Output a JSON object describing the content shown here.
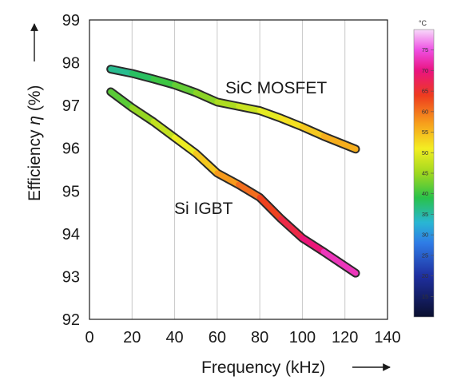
{
  "chart_data": {
    "type": "line",
    "title": "",
    "xlabel": "Frequency (kHz)",
    "ylabel_prefix": "Efficiency ",
    "ylabel_symbol": "η",
    "ylabel_suffix": " (%)",
    "xlim": [
      0,
      140
    ],
    "ylim": [
      92,
      99
    ],
    "x_ticks": [
      0,
      20,
      40,
      60,
      80,
      100,
      120,
      140
    ],
    "y_ticks": [
      92,
      93,
      94,
      95,
      96,
      97,
      98,
      99
    ],
    "grid": "vertical",
    "series": [
      {
        "name": "SiC MOSFET",
        "x": [
          10,
          20,
          30,
          40,
          50,
          60,
          70,
          80,
          90,
          100,
          110,
          125
        ],
        "y": [
          97.85,
          97.75,
          97.62,
          97.48,
          97.3,
          97.08,
          96.98,
          96.88,
          96.7,
          96.5,
          96.28,
          95.98
        ],
        "temperature_c": [
          35,
          37,
          39,
          41,
          43,
          45,
          47,
          49,
          51,
          53,
          55,
          57
        ]
      },
      {
        "name": "Si IGBT",
        "x": [
          10,
          20,
          30,
          40,
          50,
          60,
          70,
          80,
          90,
          100,
          110,
          125
        ],
        "y": [
          97.32,
          96.95,
          96.62,
          96.25,
          95.88,
          95.42,
          95.15,
          94.85,
          94.35,
          93.9,
          93.58,
          93.08
        ],
        "temperature_c": [
          40,
          43,
          46,
          49,
          52,
          56,
          59,
          62,
          65,
          68,
          71,
          75
        ]
      }
    ],
    "colorbar": {
      "unit": "°C",
      "range": [
        10,
        80
      ],
      "ticks": [
        15,
        20,
        25,
        30,
        35,
        40,
        45,
        50,
        55,
        60,
        65,
        70,
        75
      ],
      "stops": [
        {
          "t": 10,
          "color": "#0a0f2e"
        },
        {
          "t": 20,
          "color": "#1f2fa0"
        },
        {
          "t": 28,
          "color": "#2f7ce6"
        },
        {
          "t": 33,
          "color": "#29b6d3"
        },
        {
          "t": 39,
          "color": "#29c24a"
        },
        {
          "t": 45,
          "color": "#9fd81f"
        },
        {
          "t": 51,
          "color": "#f3ee22"
        },
        {
          "t": 57,
          "color": "#f7a11c"
        },
        {
          "t": 64,
          "color": "#ee3b1f"
        },
        {
          "t": 70,
          "color": "#ea1380"
        },
        {
          "t": 75,
          "color": "#ee4fe3"
        },
        {
          "t": 80,
          "color": "#f8d9fa"
        }
      ]
    }
  }
}
